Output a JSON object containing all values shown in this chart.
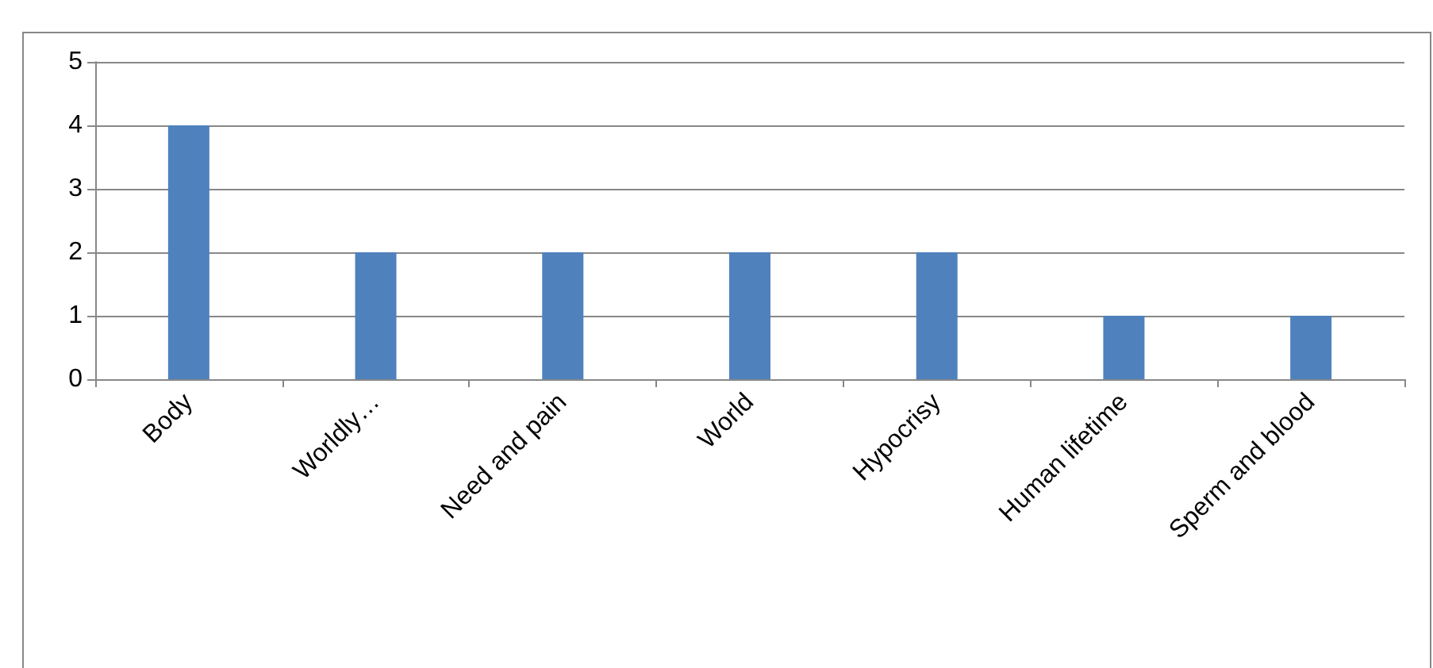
{
  "chart_data": {
    "type": "bar",
    "categories": [
      "Body",
      "Worldly…",
      "Need and pain",
      "World",
      "Hypocrisy",
      "Human lifetime",
      "Sperm and blood"
    ],
    "values": [
      4,
      2,
      2,
      2,
      2,
      1,
      1
    ],
    "color": "#4f81bd",
    "ylim": [
      0,
      5
    ],
    "yticks": [
      0,
      1,
      2,
      3,
      4,
      5
    ],
    "grid": "y"
  }
}
